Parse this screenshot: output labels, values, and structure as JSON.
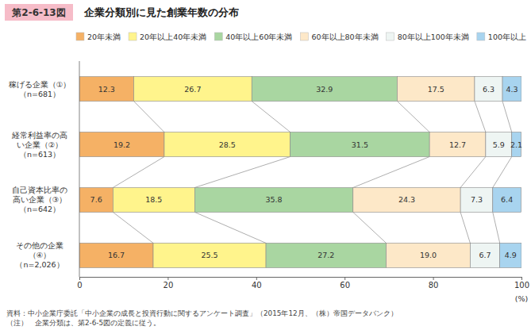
{
  "chart_data": {
    "type": "bar",
    "orientation": "horizontal",
    "stacked": true,
    "data_labels": true,
    "grid": false,
    "legend": "top",
    "figure_label": "第2-6-13図",
    "title": "企業分類別に見た創業年数の分布",
    "xlabel": "(%)",
    "categories": [
      "稼げる企業（①）\n（n=681）",
      "経常利益率の高\nい企業（②）\n（n=613）",
      "自己資本比率の\n高い企業（③）\n（n=642）",
      "その他の企業\n（④）\n（n=2,026）"
    ],
    "series": [
      {
        "name": "20年未満",
        "color": "#f5b165",
        "values": [
          12.3,
          19.2,
          7.6,
          16.7
        ]
      },
      {
        "name": "20年以上40年未満",
        "color": "#fff48c",
        "values": [
          26.7,
          28.5,
          18.5,
          25.5
        ]
      },
      {
        "name": "40年以上60年未満",
        "color": "#a9d6a1",
        "values": [
          32.9,
          31.5,
          35.8,
          27.2
        ]
      },
      {
        "name": "60年以上80年未満",
        "color": "#fde8c8",
        "values": [
          17.5,
          12.7,
          24.3,
          19.0
        ],
        "value_labels": [
          "17.5",
          "12.7",
          "24.3",
          "19.0"
        ]
      },
      {
        "name": "80年以上100年未満",
        "color": "#eef5f3",
        "values": [
          6.3,
          5.9,
          7.3,
          6.7
        ]
      },
      {
        "name": "100年以上",
        "color": "#a8d4ef",
        "values": [
          4.3,
          2.1,
          6.4,
          4.9
        ]
      }
    ],
    "xlim": [
      0,
      100
    ],
    "xticks": [
      0,
      20,
      40,
      60,
      80,
      100
    ],
    "notes": [
      "資料：中小企業庁委託「中小企業の成長と投資行動に関するアンケート調査」（2015年12月、（株）帝国データバンク）",
      "（注）　企業分類は、第2-6-5図の定義に従う。"
    ]
  }
}
